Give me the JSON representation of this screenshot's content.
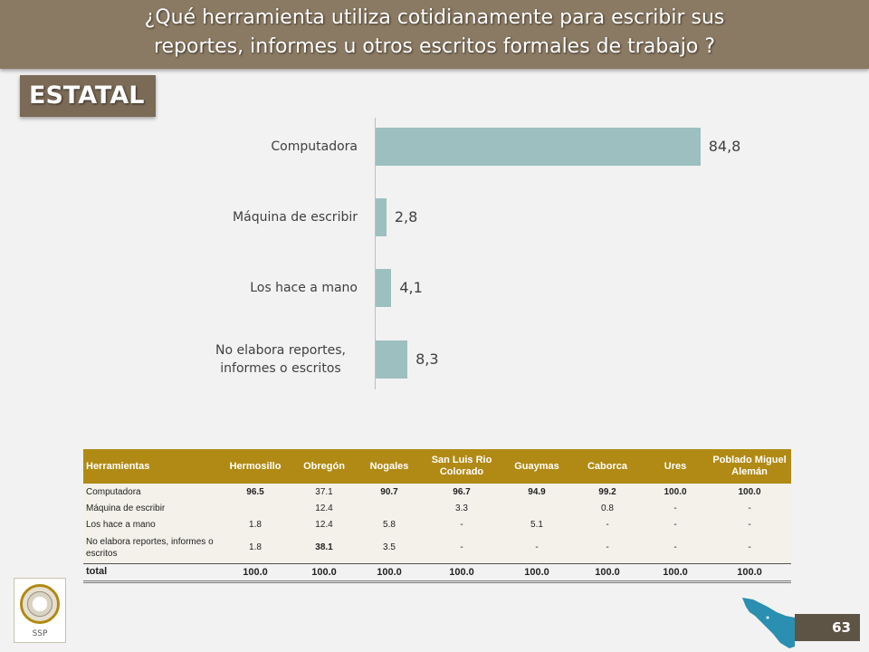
{
  "header": {
    "title": "¿Qué herramienta utiliza cotidianamente para escribir sus\nreportes, informes u otros escritos formales de trabajo ?"
  },
  "section_label": "ESTATAL",
  "chart_data": {
    "type": "bar",
    "orientation": "horizontal",
    "categories": [
      "Computadora",
      "Máquina de escribir",
      "Los hace a mano",
      "No elabora reportes,\ninformes o escritos"
    ],
    "values": [
      84.8,
      2.8,
      4.1,
      8.3
    ],
    "value_labels": [
      "84,8",
      "2,8",
      "4,1",
      "8,3"
    ],
    "xlim": [
      0,
      100
    ],
    "bar_color": "#9dbfbf",
    "grid": false,
    "legend": "none"
  },
  "table": {
    "headers": [
      "Herramientas",
      "Hermosillo",
      "Obregón",
      "Nogales",
      "San Luis Rio Colorado",
      "Guaymas",
      "Caborca",
      "Ures",
      "Poblado Miguel Alemán"
    ],
    "rows": [
      [
        "Computadora",
        "96.5",
        "37.1",
        "90.7",
        "96.7",
        "94.9",
        "99.2",
        "100.0",
        "100.0"
      ],
      [
        "Máquina de escribir",
        "",
        "12.4",
        "",
        "3.3",
        "",
        "0.8",
        "-",
        "-"
      ],
      [
        "Los hace a mano",
        "1.8",
        "12.4",
        "5.8",
        "-",
        "5.1",
        "-",
        "-",
        "-"
      ],
      [
        "No elabora reportes, informes o escritos",
        "1.8",
        "38.1",
        "3.5",
        "-",
        "-",
        "-",
        "-",
        "-"
      ]
    ],
    "total_row": [
      "total",
      "100.0",
      "100.0",
      "100.0",
      "100.0",
      "100.0",
      "100.0",
      "100.0",
      "100.0"
    ]
  },
  "footer": {
    "logo_text": "SSP",
    "page_number": "63"
  },
  "colors": {
    "title_bar": "#8b7a63",
    "section_tab": "#7a6a56",
    "table_header": "#b08a14",
    "map": "#2a8fb0"
  }
}
